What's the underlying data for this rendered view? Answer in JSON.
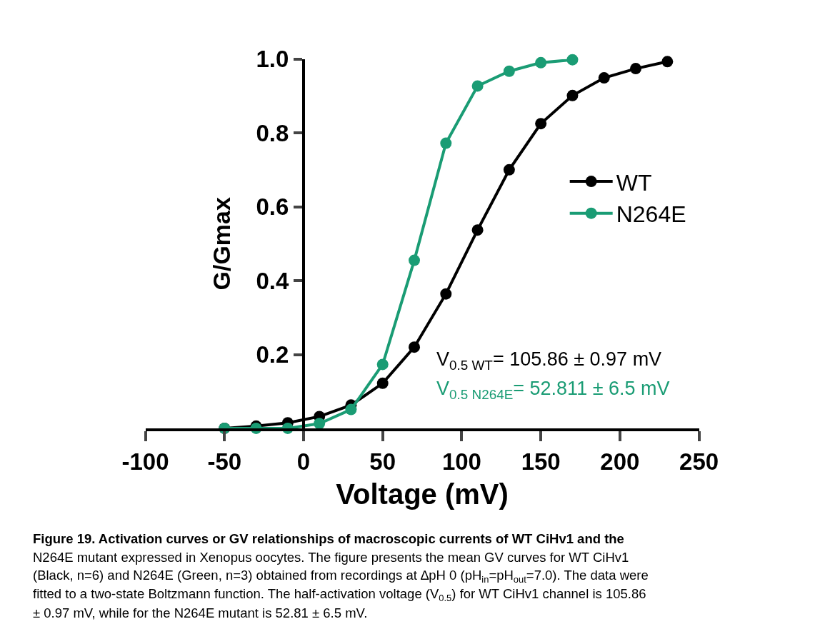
{
  "chart_data": {
    "type": "line",
    "xlabel": "Voltage (mV)",
    "ylabel": "G/Gmax",
    "xlim": [
      -100,
      250
    ],
    "xticks": [
      -100,
      -50,
      0,
      50,
      100,
      150,
      200,
      250
    ],
    "ylim": [
      0,
      1.0
    ],
    "yticks": [
      {
        "value": 0.2,
        "label": "0.2"
      },
      {
        "value": 0.4,
        "label": "0.4"
      },
      {
        "value": 0.6,
        "label": "0.6"
      },
      {
        "value": 0.8,
        "label": "0.8"
      },
      {
        "value": 1.0,
        "label": "1.0"
      }
    ],
    "legend": "right",
    "marker": "circle",
    "line_style": "solid",
    "series": [
      {
        "name": "WT",
        "color": "#000000",
        "x": [
          -50,
          -30,
          -10,
          10,
          30,
          50,
          70,
          90,
          110,
          130,
          150,
          170,
          190,
          210,
          230
        ],
        "values": [
          0.0,
          0.006,
          0.015,
          0.032,
          0.063,
          0.122,
          0.22,
          0.364,
          0.537,
          0.7,
          0.825,
          0.901,
          0.949,
          0.974,
          0.993
        ]
      },
      {
        "name": "N264E",
        "color": "#1a9c74",
        "x": [
          -50,
          -30,
          -10,
          10,
          30,
          50,
          70,
          90,
          110,
          130,
          150,
          170
        ],
        "values": [
          0.0,
          0.0,
          0.0,
          0.013,
          0.051,
          0.173,
          0.455,
          0.772,
          0.927,
          0.967,
          0.99,
          0.998
        ]
      }
    ],
    "annotations": [
      "V$_{0.5 WT}$= 105.86 ± 0.97 mV",
      "V$_{0.5 N264E}$= 52.811 ± 6.5 mV",
      "Figure 19. Activation curves or GV relationships of macroscopic currents of WT CiHv1 and the",
      "N264E mutant expressed in Xenopus oocytes. The figure presents the mean GV curves for WT CiHv1",
      "(Black, n=6) and N264E (Green, n=3) obtained from recordings at ∆pH 0 (pH$_{in}$=pH$_{out}$=7.0). The data were",
      "fitted to a two-state Boltzmann function. The half-activation voltage (V$_{0.5}$) for WT CiHv1 channel is 105.86",
      "± 0.97 mV, while for the N264E mutant is 52.81 ± 6.5 mV."
    ]
  }
}
